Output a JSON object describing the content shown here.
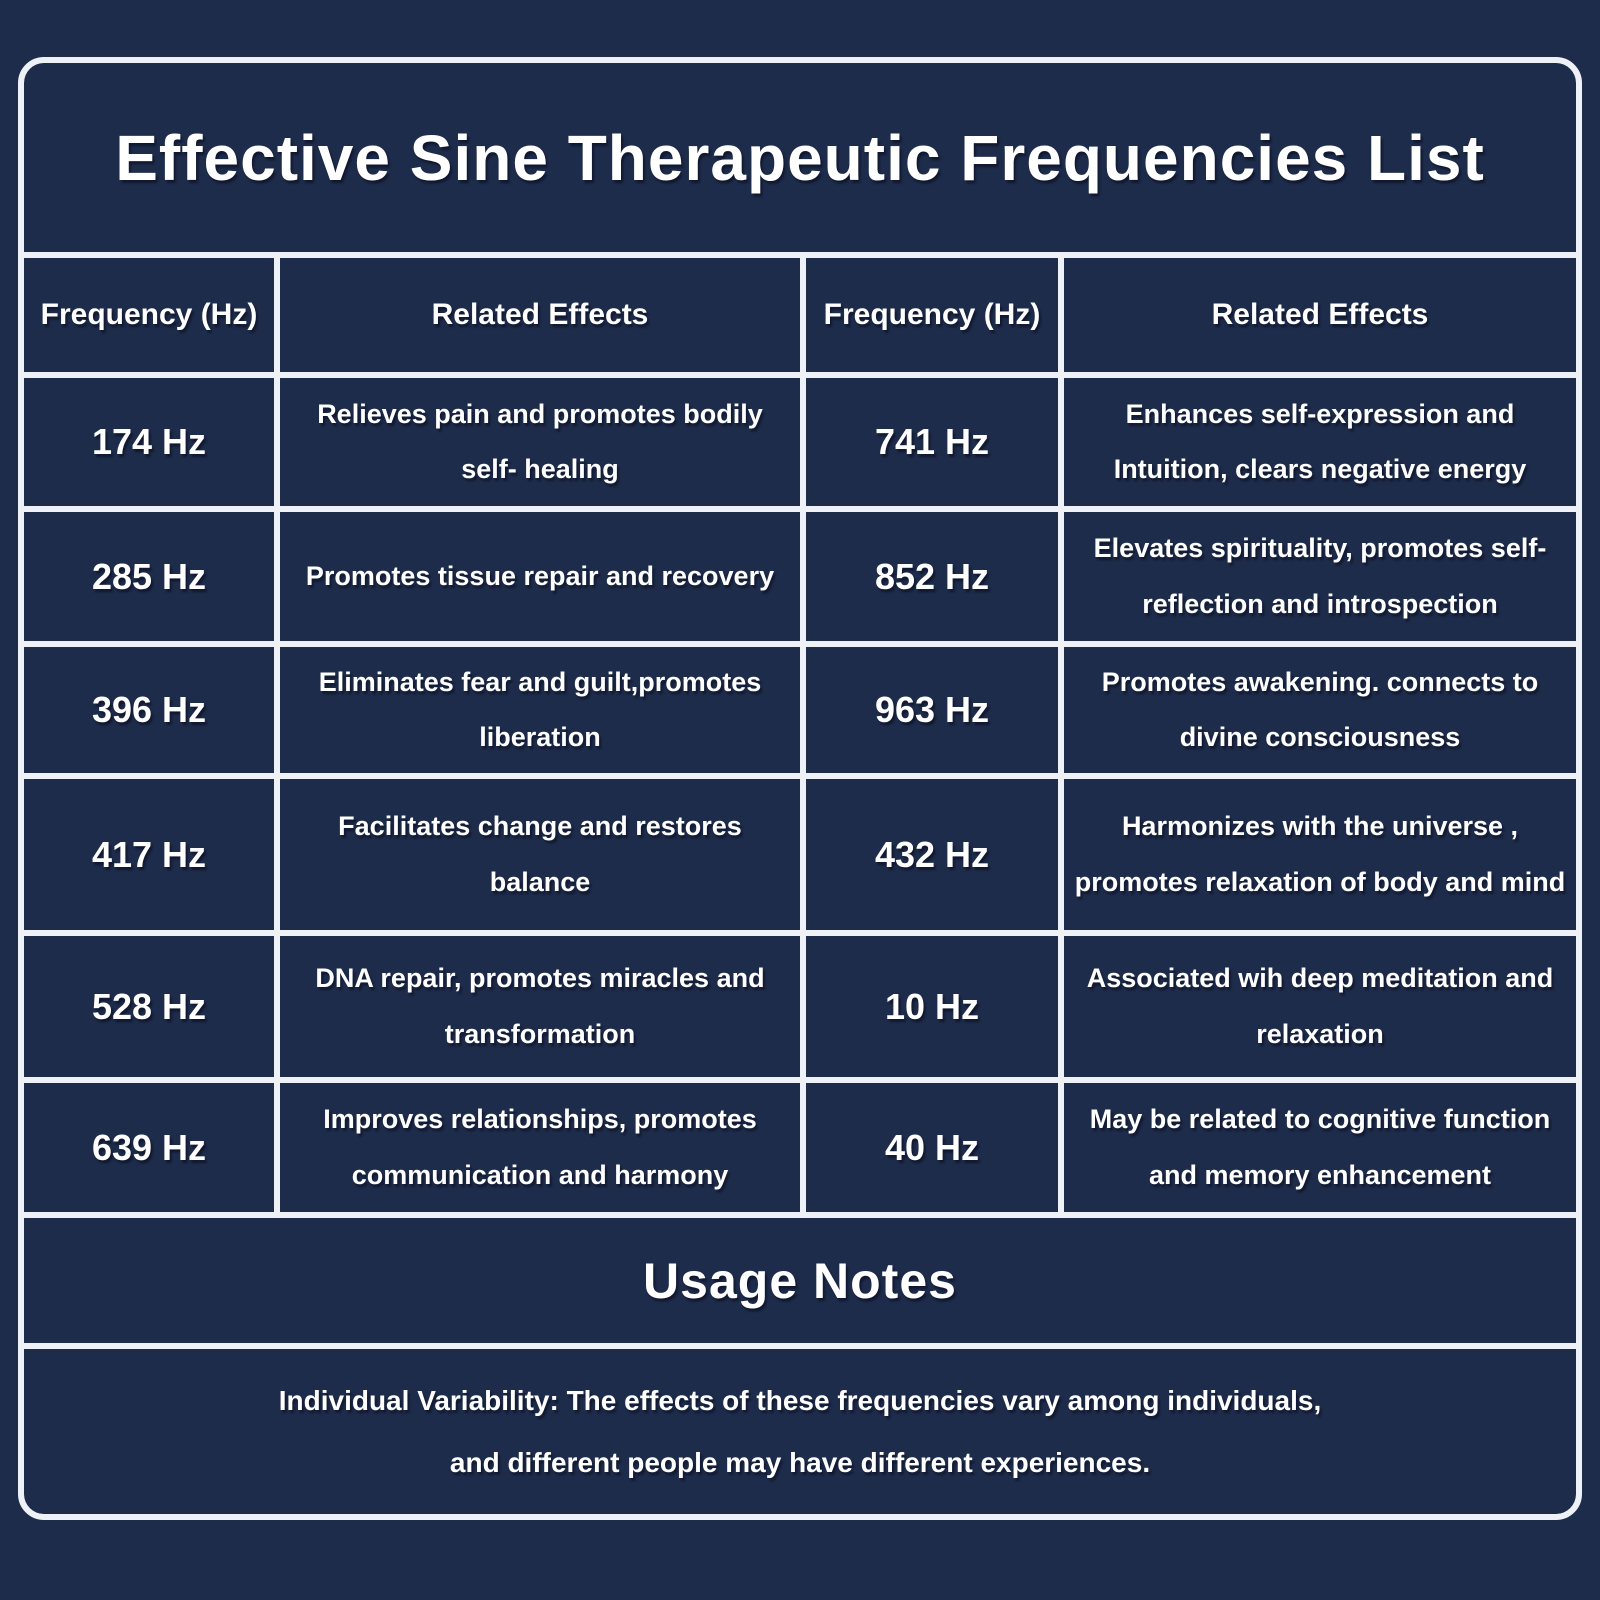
{
  "title": "Effective Sine Therapeutic Frequencies List",
  "colors": {
    "background": "#1e2c4b",
    "grid_border": "#eef2f7",
    "text": "#ffffff"
  },
  "table": {
    "headers": [
      "Frequency (Hz)",
      "Related Effects",
      "Frequency (Hz)",
      "Related Effects"
    ],
    "rows": [
      {
        "freq_left": "174 Hz",
        "effect_left": "Relieves pain and promotes bodily self- healing",
        "freq_right": "741 Hz",
        "effect_right": "Enhances self-expression and Intuition, clears negative energy"
      },
      {
        "freq_left": "285 Hz",
        "effect_left": "Promotes tissue repair and recovery",
        "freq_right": "852 Hz",
        "effect_right": "Elevates spirituality, promotes self-reflection and introspection"
      },
      {
        "freq_left": "396 Hz",
        "effect_left": "Eliminates fear and guilt,promotes liberation",
        "freq_right": "963 Hz",
        "effect_right": "Promotes awakening. connects to divine consciousness"
      },
      {
        "freq_left": "417 Hz",
        "effect_left": "Facilitates change and restores balance",
        "freq_right": "432 Hz",
        "effect_right": "Harmonizes with the universe , promotes relaxation of body and mind"
      },
      {
        "freq_left": "528 Hz",
        "effect_left": "DNA repair, promotes miracles and transformation",
        "freq_right": "10 Hz",
        "effect_right": "Associated wih deep meditation and relaxation"
      },
      {
        "freq_left": "639 Hz",
        "effect_left": "Improves relationships, promotes communication and harmony",
        "freq_right": "40 Hz",
        "effect_right": "May be related to cognitive function and memory enhancement"
      }
    ]
  },
  "usage_notes": {
    "heading": "Usage Notes",
    "line1": "Individual Variability: The effects of these frequencies vary among individuals,",
    "line2": "and different people may have different experiences."
  }
}
